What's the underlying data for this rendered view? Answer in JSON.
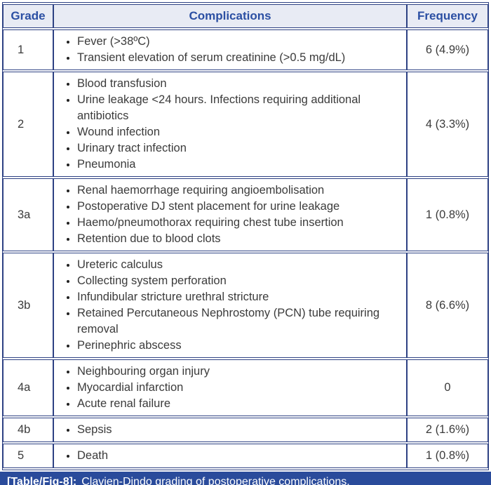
{
  "table": {
    "columns": [
      "Grade",
      "Complications",
      "Frequency"
    ],
    "rows": [
      {
        "grade": "1",
        "complications": [
          "Fever (>38ºC)",
          "Transient elevation of serum creatinine (>0.5 mg/dL)"
        ],
        "frequency": "6 (4.9%)"
      },
      {
        "grade": "2",
        "complications": [
          "Blood transfusion",
          "Urine leakage <24 hours. Infections requiring additional antibiotics",
          "Wound infection",
          "Urinary tract infection",
          "Pneumonia"
        ],
        "frequency": "4 (3.3%)"
      },
      {
        "grade": "3a",
        "complications": [
          "Renal haemorrhage requiring angioembolisation",
          "Postoperative DJ stent placement for urine leakage",
          "Haemo/pneumothorax requiring chest tube insertion",
          "Retention due to blood clots"
        ],
        "frequency": "1 (0.8%)"
      },
      {
        "grade": "3b",
        "complications": [
          "Ureteric calculus",
          "Collecting system perforation",
          "Infundibular stricture urethral stricture",
          "Retained Percutaneous Nephrostomy (PCN) tube requiring removal",
          "Perinephric abscess"
        ],
        "frequency": "8 (6.6%)"
      },
      {
        "grade": "4a",
        "complications": [
          "Neighbouring organ injury",
          "Myocardial infarction",
          "Acute renal failure"
        ],
        "frequency": "0"
      },
      {
        "grade": "4b",
        "complications": [
          "Sepsis"
        ],
        "frequency": "2 (1.6%)"
      },
      {
        "grade": "5",
        "complications": [
          "Death"
        ],
        "frequency": "1 (0.8%)"
      }
    ]
  },
  "caption": {
    "label": "[Table/Fig-8]:",
    "text": "Clavien-Dindo grading of postoperative complications."
  },
  "colors": {
    "border": "#2d4183",
    "header_bg": "#e8ebf4",
    "header_text": "#2b4fa3",
    "body_text": "#3b3b3b",
    "caption_bg": "#2a4b9b",
    "caption_text": "#ffffff"
  }
}
